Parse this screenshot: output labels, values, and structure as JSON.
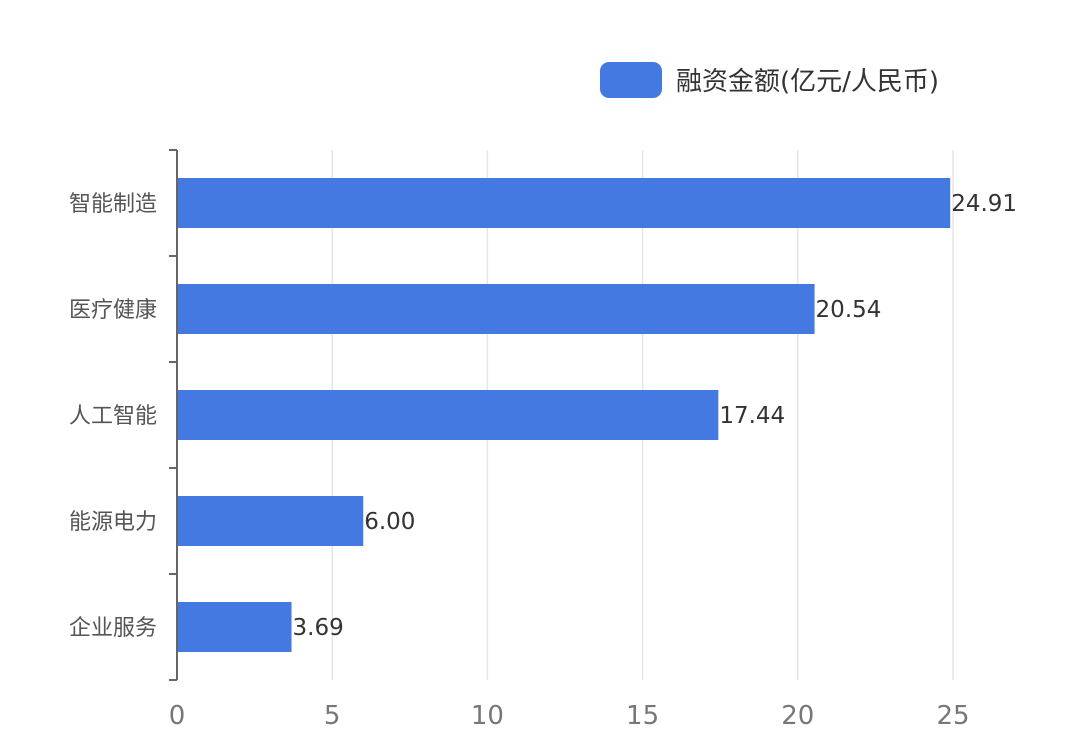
{
  "chart_data": {
    "type": "bar",
    "orientation": "horizontal",
    "categories": [
      "智能制造",
      "医疗健康",
      "人工智能",
      "能源电力",
      "企业服务"
    ],
    "series": [
      {
        "name": "融资金额(亿元/人民币)",
        "values": [
          24.91,
          20.54,
          17.44,
          6.0,
          3.69
        ],
        "value_labels": [
          "24.91",
          "20.54",
          "17.44",
          "6.00",
          "3.69"
        ],
        "color": "#4479E1"
      }
    ],
    "xlim": [
      0,
      25
    ],
    "x_ticks": [
      "0",
      "5",
      "10",
      "15",
      "20",
      "25"
    ],
    "grid": "vertical",
    "legend_position": "top-right"
  }
}
